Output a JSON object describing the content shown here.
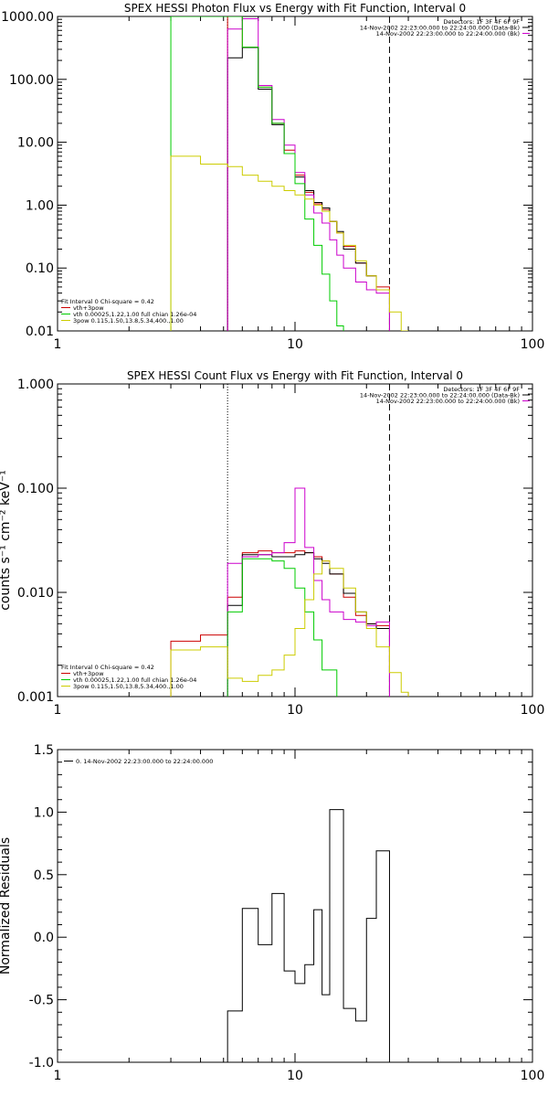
{
  "chart_data": [
    {
      "type": "line",
      "title": "SPEX HESSI Photon Flux vs Energy with Fit Function, Interval 0",
      "xlabel": "",
      "ylabel": "",
      "xscale": "log",
      "yscale": "log",
      "xlim": [
        1,
        100
      ],
      "ylim": [
        0.01,
        1000
      ],
      "x_ticks": [
        1,
        10,
        100
      ],
      "x_tick_labels": [
        "1",
        "10",
        "100"
      ],
      "y_ticks": [
        0.01,
        0.1,
        1,
        10,
        100,
        1000
      ],
      "y_tick_labels": [
        "0.01",
        "0.10",
        "1.00",
        "10.00",
        "100.00",
        "1000.00"
      ],
      "vlines": [
        {
          "x": 5.2,
          "style": "dotted"
        },
        {
          "x": 25.0,
          "style": "dashed"
        }
      ],
      "legend_top": [
        "Detectors: 1F 3F 4F 6F 9F",
        "14-Nov-2002 22:23:00.000 to 22:24:00.000 (Data-Bk)",
        "14-Nov-2002 22:23:00.000 to 22:24:00.000 (Bk)"
      ],
      "legend_bottom": [
        "Fit Interval  0    Chi-square = 0.42",
        "vth+3pow",
        "vth 0.00025,1.22,1.00  full chian 1.26e-04",
        "3pow 0.115,1.50,13.8,5.34,400.,1.00"
      ],
      "series": [
        {
          "name": "vth+3pow",
          "color": "#cc0000",
          "edges": [
            5.2,
            6.0,
            7.0,
            8.0,
            9.0,
            10.0,
            11.0,
            12.0,
            13.0,
            14.0,
            15.0,
            16.0,
            18.0,
            20.0,
            22.0,
            25.0
          ],
          "values": [
            1000,
            325,
            75,
            20,
            7.5,
            3.0,
            1.6,
            1.05,
            0.85,
            0.55,
            0.36,
            0.22,
            0.12,
            0.075,
            0.05
          ]
        },
        {
          "name": "Data-Bk",
          "color": "#000000",
          "edges": [
            5.2,
            6.0,
            7.0,
            8.0,
            9.0,
            10.0,
            11.0,
            12.0,
            13.0,
            14.0,
            15.0,
            16.0,
            18.0,
            20.0,
            22.0,
            25.0
          ],
          "values": [
            220,
            320,
            70,
            19,
            6.6,
            2.8,
            1.7,
            1.1,
            0.9,
            0.55,
            0.38,
            0.2,
            0.12,
            0.075,
            0.045
          ]
        },
        {
          "name": "Bk",
          "color": "#cc00cc",
          "edges": [
            5.2,
            6.0,
            7.0,
            8.0,
            9.0,
            10.0,
            11.0,
            12.0,
            13.0,
            14.0,
            15.0,
            16.0,
            18.0,
            20.0,
            22.0,
            25.0
          ],
          "values": [
            630,
            920,
            80,
            23,
            9.0,
            3.3,
            1.45,
            0.75,
            0.52,
            0.28,
            0.16,
            0.1,
            0.06,
            0.045,
            0.04
          ]
        },
        {
          "name": "vth",
          "color": "#00cc00",
          "edges": [
            3.0,
            5.2,
            6.0,
            7.0,
            8.0,
            9.0,
            10.0,
            11.0,
            12.0,
            13.0,
            14.0,
            15.0,
            16.0
          ],
          "values": [
            1000,
            1000,
            325,
            75,
            20,
            6.6,
            2.2,
            0.6,
            0.23,
            0.08,
            0.03,
            0.012
          ]
        },
        {
          "name": "3pow",
          "color": "#cccc00",
          "edges": [
            3.0,
            4.0,
            5.2,
            6.0,
            7.0,
            8.0,
            9.0,
            10.0,
            11.0,
            12.0,
            13.0,
            14.0,
            15.0,
            16.0,
            18.0,
            20.0,
            22.0,
            25.0,
            28.0,
            30.0
          ],
          "values": [
            6.0,
            4.5,
            4.1,
            3.0,
            2.4,
            2.0,
            1.7,
            1.45,
            1.25,
            1.0,
            0.8,
            0.55,
            0.36,
            0.23,
            0.13,
            0.075,
            0.045,
            0.02,
            0.01
          ]
        }
      ]
    },
    {
      "type": "line",
      "title": "SPEX HESSI Count Flux vs Energy with Fit Function, Interval 0",
      "xlabel": "",
      "ylabel": "counts s⁻¹ cm⁻² keV⁻¹",
      "xscale": "log",
      "yscale": "log",
      "xlim": [
        1,
        100
      ],
      "ylim": [
        0.001,
        1
      ],
      "x_ticks": [
        1,
        10,
        100
      ],
      "x_tick_labels": [
        "1",
        "10",
        "100"
      ],
      "y_ticks": [
        0.001,
        0.01,
        0.1,
        1
      ],
      "y_tick_labels": [
        "0.001",
        "0.010",
        "0.100",
        "1.000"
      ],
      "vlines": [
        {
          "x": 5.2,
          "style": "dotted"
        },
        {
          "x": 25.0,
          "style": "dashed"
        }
      ],
      "legend_top": [
        "Detectors: 1F 3F 4F 6F 9F",
        "14-Nov-2002 22:23:00.000 to 22:24:00.000 (Data-Bk)",
        "14-Nov-2002 22:23:00.000 to 22:24:00.000 (Bk)"
      ],
      "legend_bottom": [
        "Fit Interval  0    Chi-square = 0.42",
        "vth+3pow",
        "vth 0.00025,1.22,1.00  full chian 1.26e-04",
        "3pow 0.115,1.50,13.8,5.34,400.,1.00"
      ],
      "series": [
        {
          "name": "vth+3pow",
          "color": "#cc0000",
          "edges": [
            3.0,
            4.0,
            5.2,
            6.0,
            7.0,
            8.0,
            9.0,
            10.0,
            11.0,
            12.0,
            13.0,
            14.0,
            16.0,
            18.0,
            20.0,
            22.0,
            25.0
          ],
          "values": [
            0.0034,
            0.0039,
            0.009,
            0.024,
            0.025,
            0.024,
            0.024,
            0.025,
            0.024,
            0.022,
            0.02,
            0.015,
            0.009,
            0.006,
            0.005,
            0.0048
          ]
        },
        {
          "name": "Data-Bk",
          "color": "#000000",
          "edges": [
            5.2,
            6.0,
            7.0,
            8.0,
            9.0,
            10.0,
            11.0,
            12.0,
            13.0,
            14.0,
            16.0,
            18.0,
            20.0,
            22.0,
            25.0
          ],
          "values": [
            0.0075,
            0.023,
            0.023,
            0.022,
            0.022,
            0.023,
            0.024,
            0.021,
            0.019,
            0.015,
            0.0098,
            0.0065,
            0.005,
            0.0045
          ]
        },
        {
          "name": "Bk",
          "color": "#cc00cc",
          "edges": [
            5.2,
            6.0,
            7.0,
            8.0,
            9.0,
            10.0,
            11.0,
            12.0,
            13.0,
            14.0,
            16.0,
            18.0,
            20.0,
            22.0,
            25.0
          ],
          "values": [
            0.019,
            0.022,
            0.023,
            0.024,
            0.03,
            0.1,
            0.027,
            0.013,
            0.0085,
            0.0065,
            0.0055,
            0.0052,
            0.0048,
            0.0052
          ]
        },
        {
          "name": "vth",
          "color": "#00cc00",
          "edges": [
            5.2,
            6.0,
            7.0,
            8.0,
            9.0,
            10.0,
            11.0,
            12.0,
            13.0,
            15.0
          ],
          "values": [
            0.0065,
            0.021,
            0.021,
            0.02,
            0.017,
            0.011,
            0.0065,
            0.0035,
            0.0018
          ]
        },
        {
          "name": "3pow",
          "color": "#cccc00",
          "edges": [
            3.0,
            4.0,
            5.2,
            6.0,
            7.0,
            8.0,
            9.0,
            10.0,
            11.0,
            12.0,
            13.0,
            14.0,
            16.0,
            18.0,
            20.0,
            22.0,
            25.0,
            28.0,
            30.0
          ],
          "values": [
            0.0028,
            0.003,
            0.0015,
            0.0014,
            0.0016,
            0.0018,
            0.0025,
            0.0045,
            0.0085,
            0.015,
            0.02,
            0.017,
            0.011,
            0.0065,
            0.0045,
            0.003,
            0.0017,
            0.0011
          ]
        }
      ]
    },
    {
      "type": "line",
      "title": "",
      "xlabel": "",
      "ylabel": "Normalized Residuals",
      "xscale": "log",
      "yscale": "linear",
      "xlim": [
        1,
        100
      ],
      "ylim": [
        -1,
        1.5
      ],
      "x_ticks": [
        1,
        10,
        100
      ],
      "x_tick_labels": [
        "1",
        "10",
        "100"
      ],
      "y_ticks": [
        -1,
        -0.5,
        0,
        0.5,
        1,
        1.5
      ],
      "y_tick_labels": [
        "-1.0",
        "-0.5",
        "0.0",
        "0.5",
        "1.0",
        "1.5"
      ],
      "legend_top": [
        "0. 14-Nov-2002 22:23:00.000 to 22:24:00.000"
      ],
      "series": [
        {
          "name": "",
          "color": "#000000",
          "edges": [
            5.2,
            6.0,
            7.0,
            8.0,
            9.0,
            10.0,
            11.0,
            12.0,
            13.0,
            14.0,
            16.0,
            18.0,
            20.0,
            22.0,
            25.0
          ],
          "values": [
            -0.59,
            0.23,
            -0.06,
            0.35,
            -0.27,
            -0.37,
            -0.22,
            0.22,
            -0.46,
            1.02,
            -0.57,
            -0.67,
            0.15,
            0.69
          ]
        }
      ]
    }
  ]
}
